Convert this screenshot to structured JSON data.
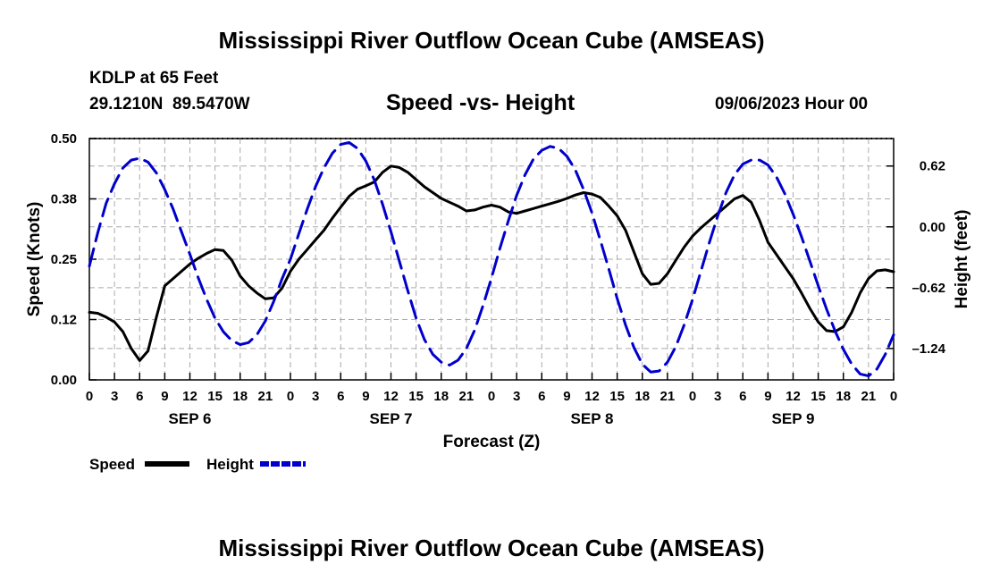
{
  "header": {
    "title": "Mississippi River Outflow Ocean Cube (AMSEAS)",
    "station": "KDLP at 65 Feet",
    "coords": "29.1210N  89.5470W",
    "subtitle": "Speed -vs- Height",
    "datetime": "09/06/2023 Hour 00"
  },
  "footer": {
    "title": "Mississippi River Outflow Ocean Cube (AMSEAS)"
  },
  "chart_data": {
    "type": "line",
    "title": "Speed -vs- Height",
    "xlabel": "Forecast (Z)",
    "ylabel": "Speed (Knots)",
    "y2label": "Height (feet)",
    "xlim": [
      0,
      96
    ],
    "ylim": [
      0,
      0.5
    ],
    "y2lim": [
      -1.56,
      0.9
    ],
    "grid": true,
    "x_ticks": [
      0,
      3,
      6,
      9,
      12,
      15,
      18,
      21,
      24,
      27,
      30,
      33,
      36,
      39,
      42,
      45,
      48,
      51,
      54,
      57,
      60,
      63,
      66,
      69,
      72,
      75,
      78,
      81,
      84,
      87,
      90,
      93,
      96
    ],
    "x_tick_labels": [
      "0",
      "3",
      "6",
      "9",
      "12",
      "15",
      "18",
      "21",
      "0",
      "3",
      "6",
      "9",
      "12",
      "15",
      "18",
      "21",
      "0",
      "3",
      "6",
      "9",
      "12",
      "15",
      "18",
      "21",
      "0",
      "3",
      "6",
      "9",
      "12",
      "15",
      "18",
      "21",
      "0"
    ],
    "day_labels": [
      {
        "label": "SEP 6",
        "hour": 12
      },
      {
        "label": "SEP 7",
        "hour": 36
      },
      {
        "label": "SEP 8",
        "hour": 60
      },
      {
        "label": "SEP 9",
        "hour": 84
      }
    ],
    "y_ticks": [
      0.0,
      0.125,
      0.25,
      0.375,
      0.5
    ],
    "y_tick_labels": [
      "0.00",
      "0.12",
      "0.25",
      "0.38",
      "0.50"
    ],
    "y2_ticks": [
      0.62,
      0.0,
      -0.62,
      -1.24
    ],
    "y2_tick_labels": [
      "0.62",
      "0.00",
      "–0.62",
      "–1.24"
    ],
    "legend_position": "bottom-left",
    "series": [
      {
        "name": "Speed",
        "axis": "left",
        "color": "#000000",
        "style": "solid",
        "x": [
          0,
          1,
          2,
          3,
          4,
          5,
          6,
          7,
          8,
          9,
          10,
          11,
          12,
          13,
          14,
          15,
          16,
          17,
          18,
          19,
          20,
          21,
          22,
          23,
          24,
          25,
          26,
          27,
          28,
          29,
          30,
          31,
          32,
          33,
          34,
          35,
          36,
          37,
          38,
          39,
          40,
          41,
          42,
          43,
          44,
          45,
          46,
          47,
          48,
          49,
          50,
          51,
          52,
          53,
          54,
          55,
          56,
          57,
          58,
          59,
          60,
          61,
          62,
          63,
          64,
          65,
          66,
          67,
          68,
          69,
          70,
          71,
          72,
          73,
          74,
          75,
          76,
          77,
          78,
          79,
          80,
          81,
          82,
          83,
          84,
          85,
          86,
          87,
          88,
          89,
          90,
          91,
          92,
          93,
          94,
          95,
          96
        ],
        "y": [
          0.14,
          0.138,
          0.13,
          0.12,
          0.1,
          0.065,
          0.04,
          0.06,
          0.13,
          0.195,
          0.21,
          0.225,
          0.24,
          0.252,
          0.262,
          0.27,
          0.268,
          0.248,
          0.215,
          0.195,
          0.18,
          0.168,
          0.17,
          0.19,
          0.225,
          0.25,
          0.27,
          0.29,
          0.31,
          0.335,
          0.358,
          0.38,
          0.395,
          0.402,
          0.41,
          0.43,
          0.443,
          0.44,
          0.43,
          0.415,
          0.4,
          0.388,
          0.376,
          0.368,
          0.36,
          0.35,
          0.352,
          0.358,
          0.362,
          0.358,
          0.348,
          0.345,
          0.35,
          0.355,
          0.36,
          0.365,
          0.37,
          0.376,
          0.383,
          0.388,
          0.385,
          0.378,
          0.36,
          0.34,
          0.31,
          0.265,
          0.22,
          0.198,
          0.2,
          0.22,
          0.248,
          0.275,
          0.298,
          0.315,
          0.33,
          0.345,
          0.36,
          0.375,
          0.382,
          0.368,
          0.33,
          0.285,
          0.26,
          0.235,
          0.21,
          0.18,
          0.148,
          0.12,
          0.102,
          0.1,
          0.11,
          0.14,
          0.18,
          0.21,
          0.226,
          0.228,
          0.224
        ]
      },
      {
        "name": "Height",
        "axis": "right",
        "color": "#0000cc",
        "style": "dashed",
        "x": [
          0,
          1,
          2,
          3,
          4,
          5,
          6,
          7,
          8,
          9,
          10,
          11,
          12,
          13,
          14,
          15,
          16,
          17,
          18,
          19,
          20,
          21,
          22,
          23,
          24,
          25,
          26,
          27,
          28,
          29,
          30,
          31,
          32,
          33,
          34,
          35,
          36,
          37,
          38,
          39,
          40,
          41,
          42,
          43,
          44,
          45,
          46,
          47,
          48,
          49,
          50,
          51,
          52,
          53,
          54,
          55,
          56,
          57,
          58,
          59,
          60,
          61,
          62,
          63,
          64,
          65,
          66,
          67,
          68,
          69,
          70,
          71,
          72,
          73,
          74,
          75,
          76,
          77,
          78,
          79,
          80,
          81,
          82,
          83,
          84,
          85,
          86,
          87,
          88,
          89,
          90,
          91,
          92,
          93,
          94,
          95,
          96
        ],
        "y": [
          -0.4,
          -0.06,
          0.24,
          0.44,
          0.6,
          0.68,
          0.7,
          0.66,
          0.55,
          0.38,
          0.18,
          -0.05,
          -0.28,
          -0.52,
          -0.74,
          -0.93,
          -1.07,
          -1.16,
          -1.2,
          -1.18,
          -1.1,
          -0.96,
          -0.76,
          -0.53,
          -0.33,
          -0.07,
          0.18,
          0.41,
          0.6,
          0.75,
          0.84,
          0.86,
          0.8,
          0.67,
          0.48,
          0.23,
          -0.05,
          -0.35,
          -0.65,
          -0.93,
          -1.15,
          -1.3,
          -1.38,
          -1.41,
          -1.36,
          -1.24,
          -1.05,
          -0.8,
          -0.52,
          -0.22,
          0.06,
          0.32,
          0.53,
          0.69,
          0.78,
          0.82,
          0.8,
          0.72,
          0.58,
          0.38,
          0.14,
          -0.14,
          -0.43,
          -0.73,
          -1.0,
          -1.23,
          -1.4,
          -1.48,
          -1.47,
          -1.38,
          -1.22,
          -1.0,
          -0.74,
          -0.45,
          -0.16,
          0.11,
          0.35,
          0.53,
          0.64,
          0.68,
          0.68,
          0.63,
          0.51,
          0.34,
          0.13,
          -0.1,
          -0.35,
          -0.6,
          -0.84,
          -1.06,
          -1.25,
          -1.4,
          -1.5,
          -1.52,
          -1.45,
          -1.3,
          -1.1
        ]
      }
    ],
    "legend": [
      {
        "label": "Speed",
        "color": "#000000",
        "style": "solid"
      },
      {
        "label": "Height",
        "color": "#0000cc",
        "style": "dashed"
      }
    ]
  }
}
